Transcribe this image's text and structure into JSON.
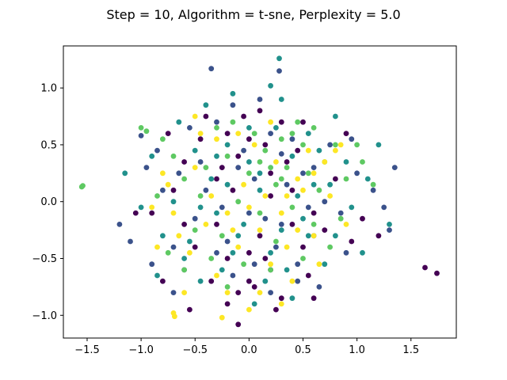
{
  "chart_data": {
    "type": "scatter",
    "title": "Step = 10, Algorithm = t-sne, Perplexity = 5.0",
    "xlabel": "",
    "ylabel": "",
    "xlim": [
      -1.72,
      1.92
    ],
    "ylim": [
      -1.2,
      1.37
    ],
    "xticks": [
      -1.5,
      -1.0,
      -0.5,
      0.0,
      0.5,
      1.0,
      1.5
    ],
    "xtick_labels": [
      "−1.5",
      "−1.0",
      "−0.5",
      "0.0",
      "0.5",
      "1.0",
      "1.5"
    ],
    "yticks": [
      -1.0,
      -0.5,
      0.0,
      0.5,
      1.0
    ],
    "ytick_labels": [
      "−1.0",
      "−0.5",
      "0.0",
      "0.5",
      "1.0"
    ],
    "grid": false,
    "colormap": "viridis",
    "palette": [
      "#440154",
      "#3b528b",
      "#21918c",
      "#5ec962",
      "#fde725"
    ],
    "series": [
      {
        "color": "#440154",
        "points": [
          [
            -0.1,
            0.4
          ],
          [
            0.2,
            -0.6
          ],
          [
            0.0,
            -0.7
          ],
          [
            -0.2,
            0.6
          ],
          [
            0.3,
            0.7
          ],
          [
            -0.3,
            0.2
          ],
          [
            0.1,
            -0.3
          ],
          [
            -0.6,
            -0.2
          ],
          [
            0.5,
            -0.4
          ],
          [
            0.4,
            0.1
          ],
          [
            -0.2,
            -0.5
          ],
          [
            0.05,
            -0.75
          ],
          [
            -0.4,
            0.75
          ],
          [
            0.9,
            0.6
          ],
          [
            0.0,
            0.55
          ],
          [
            -0.1,
            -0.8
          ],
          [
            0.3,
            -0.85
          ],
          [
            -0.25,
            0.3
          ],
          [
            0.2,
            0.25
          ],
          [
            -0.5,
            -0.4
          ],
          [
            0.6,
            -0.1
          ],
          [
            -0.7,
            0.1
          ],
          [
            0.15,
            -0.5
          ],
          [
            -0.05,
            0.75
          ],
          [
            0.45,
            0.45
          ],
          [
            -0.35,
            -0.7
          ],
          [
            0.7,
            -0.25
          ],
          [
            1.05,
            -0.15
          ],
          [
            -0.8,
            -0.7
          ],
          [
            0.25,
            -0.95
          ],
          [
            -0.15,
            0.1
          ],
          [
            0.35,
            0.35
          ],
          [
            0.1,
            0.8
          ],
          [
            -0.6,
            0.35
          ],
          [
            0.8,
            0.2
          ],
          [
            -0.9,
            -0.1
          ],
          [
            0.55,
            -0.65
          ],
          [
            0.0,
            -0.45
          ],
          [
            -0.3,
            -0.2
          ],
          [
            0.2,
            0.05
          ],
          [
            -0.45,
            0.55
          ],
          [
            1.2,
            -0.3
          ],
          [
            -1.05,
            -0.1
          ],
          [
            0.5,
            0.7
          ],
          [
            -0.2,
            -0.9
          ],
          [
            0.4,
            -0.2
          ],
          [
            -0.75,
            0.6
          ],
          [
            0.15,
            0.5
          ],
          [
            1.63,
            -0.58
          ],
          [
            1.74,
            -0.63
          ],
          [
            0.6,
            -0.85
          ],
          [
            -0.1,
            -1.08
          ],
          [
            0.95,
            -0.35
          ],
          [
            -0.55,
            -0.95
          ]
        ]
      },
      {
        "color": "#3b528b",
        "points": [
          [
            -0.4,
            0.1
          ],
          [
            0.3,
            -0.2
          ],
          [
            -0.1,
            0.3
          ],
          [
            0.2,
            0.6
          ],
          [
            -0.7,
            -0.4
          ],
          [
            0.6,
            0.3
          ],
          [
            0.0,
            -0.1
          ],
          [
            -0.3,
            0.7
          ],
          [
            0.45,
            -0.55
          ],
          [
            -0.5,
            -0.15
          ],
          [
            0.1,
            0.9
          ],
          [
            0.28,
            1.15
          ],
          [
            -0.35,
            1.17
          ],
          [
            -0.85,
            0.45
          ],
          [
            0.75,
            0.5
          ],
          [
            -0.2,
            -0.35
          ],
          [
            0.55,
            -0.05
          ],
          [
            -0.65,
            0.25
          ],
          [
            0.05,
            0.2
          ],
          [
            1.35,
            0.3
          ],
          [
            1.3,
            -0.25
          ],
          [
            -1.1,
            -0.35
          ],
          [
            0.9,
            -0.45
          ],
          [
            -0.95,
            0.3
          ],
          [
            -0.15,
            -0.65
          ],
          [
            0.4,
            0.55
          ],
          [
            -0.6,
            -0.6
          ],
          [
            0.65,
            -0.75
          ],
          [
            0.25,
            -0.4
          ],
          [
            -0.45,
            0.35
          ],
          [
            0.15,
            -0.15
          ],
          [
            1.0,
            0.25
          ],
          [
            -0.8,
            0.1
          ],
          [
            0.35,
            0.15
          ],
          [
            -0.25,
            -0.05
          ],
          [
            0.85,
            -0.1
          ],
          [
            -1.0,
            0.58
          ],
          [
            0.7,
            0.0
          ],
          [
            -0.55,
            0.65
          ],
          [
            0.2,
            -0.8
          ],
          [
            -0.05,
            0.45
          ],
          [
            1.15,
            0.1
          ],
          [
            -0.9,
            -0.55
          ],
          [
            0.5,
            0.25
          ],
          [
            -0.3,
            -0.45
          ],
          [
            0.05,
            -0.55
          ],
          [
            0.95,
            0.55
          ],
          [
            -0.7,
            -0.8
          ],
          [
            0.6,
            -0.3
          ],
          [
            -1.2,
            -0.2
          ],
          [
            0.3,
            0.42
          ],
          [
            -0.15,
            0.85
          ],
          [
            1.25,
            -0.05
          ],
          [
            0.45,
            -0.7
          ]
        ]
      },
      {
        "color": "#21918c",
        "points": [
          [
            0.1,
            0.1
          ],
          [
            -0.3,
            -0.1
          ],
          [
            0.4,
            0.4
          ],
          [
            -0.5,
            0.45
          ],
          [
            0.2,
            -0.45
          ],
          [
            -0.1,
            -0.3
          ],
          [
            0.6,
            0.15
          ],
          [
            -0.6,
            -0.5
          ],
          [
            0.3,
            0.9
          ],
          [
            -0.2,
            0.5
          ],
          [
            0.8,
            -0.3
          ],
          [
            0.0,
            0.35
          ],
          [
            -0.8,
            -0.3
          ],
          [
            0.5,
            -0.15
          ],
          [
            -0.35,
            0.2
          ],
          [
            0.9,
            0.35
          ],
          [
            -0.45,
            -0.7
          ],
          [
            0.25,
            0.65
          ],
          [
            -0.05,
            -0.2
          ],
          [
            0.7,
            -0.55
          ],
          [
            1.1,
            0.2
          ],
          [
            -0.9,
            0.4
          ],
          [
            0.35,
            -0.6
          ],
          [
            -0.15,
            0.95
          ],
          [
            0.55,
            0.6
          ],
          [
            -0.7,
            0.0
          ],
          [
            0.15,
            -0.7
          ],
          [
            1.05,
            -0.45
          ],
          [
            -0.4,
            0.85
          ],
          [
            0.45,
            0.05
          ],
          [
            -0.25,
            -0.6
          ],
          [
            0.8,
            0.75
          ],
          [
            -1.0,
            -0.05
          ],
          [
            0.3,
            -0.25
          ],
          [
            0.0,
            0.65
          ],
          [
            1.2,
            0.5
          ],
          [
            -0.55,
            -0.35
          ],
          [
            0.65,
            0.45
          ],
          [
            -0.85,
            -0.65
          ],
          [
            0.2,
            1.02
          ],
          [
            0.28,
            1.26
          ],
          [
            -0.3,
            0.4
          ],
          [
            0.95,
            -0.05
          ],
          [
            -0.65,
            0.7
          ],
          [
            0.4,
            -0.85
          ],
          [
            0.1,
            0.25
          ],
          [
            -0.15,
            -0.45
          ],
          [
            1.3,
            -0.2
          ],
          [
            -1.15,
            0.25
          ],
          [
            0.75,
            0.15
          ],
          [
            -0.45,
            -0.05
          ],
          [
            0.55,
            -0.3
          ],
          [
            -0.2,
            0.15
          ],
          [
            0.05,
            -0.9
          ]
        ]
      },
      {
        "color": "#5ec962",
        "points": [
          [
            0.2,
            0.3
          ],
          [
            -0.4,
            0.3
          ],
          [
            0.5,
            0.5
          ],
          [
            -0.6,
            0.2
          ],
          [
            0.1,
            -0.1
          ],
          [
            0.3,
            0.2
          ],
          [
            -0.2,
            0.4
          ],
          [
            0.7,
            0.35
          ],
          [
            -0.8,
            0.55
          ],
          [
            0.0,
            0.25
          ],
          [
            0.4,
            -0.05
          ],
          [
            -0.3,
            0.65
          ],
          [
            0.6,
            -0.2
          ],
          [
            0.9,
            0.2
          ],
          [
            -0.5,
            -0.25
          ],
          [
            0.15,
            0.45
          ],
          [
            -0.1,
            0.0
          ],
          [
            0.25,
            -0.35
          ],
          [
            0.8,
            0.5
          ],
          [
            -0.7,
            0.4
          ],
          [
            1.0,
            0.5
          ],
          [
            -1.0,
            0.65
          ],
          [
            -0.95,
            0.62
          ],
          [
            0.45,
            0.7
          ],
          [
            -0.25,
            -0.3
          ],
          [
            0.35,
            0.3
          ],
          [
            0.05,
            0.6
          ],
          [
            -0.45,
            0.05
          ],
          [
            0.65,
            0.1
          ],
          [
            1.15,
            0.15
          ],
          [
            -0.85,
            0.05
          ],
          [
            0.2,
            -0.6
          ],
          [
            0.55,
            0.25
          ],
          [
            -0.15,
            0.7
          ],
          [
            -1.54,
            0.14
          ],
          [
            -1.55,
            0.13
          ],
          [
            0.85,
            -0.15
          ],
          [
            -0.6,
            -0.6
          ],
          [
            0.3,
            0.55
          ],
          [
            -0.35,
            -0.5
          ],
          [
            0.75,
            -0.4
          ],
          [
            0.1,
            0.35
          ],
          [
            -0.05,
            -0.55
          ],
          [
            0.5,
            -0.5
          ],
          [
            -0.2,
            -0.75
          ],
          [
            0.4,
            0.6
          ],
          [
            1.05,
            0.35
          ],
          [
            -0.75,
            -0.45
          ],
          [
            0.25,
            0.15
          ],
          [
            0.6,
            0.65
          ]
        ]
      },
      {
        "color": "#fde725",
        "points": [
          [
            -0.2,
            -0.1
          ],
          [
            0.3,
            -0.1
          ],
          [
            -0.5,
            0.3
          ],
          [
            0.6,
            -0.3
          ],
          [
            0.0,
            -0.05
          ],
          [
            -0.7,
            -0.1
          ],
          [
            0.45,
            0.2
          ],
          [
            -0.3,
            0.55
          ],
          [
            0.2,
            -0.55
          ],
          [
            -0.55,
            -0.45
          ],
          [
            0.75,
            0.05
          ],
          [
            -0.1,
            0.6
          ],
          [
            0.35,
            -0.4
          ],
          [
            -0.8,
            0.25
          ],
          [
            0.9,
            -0.2
          ],
          [
            -0.4,
            -0.2
          ],
          [
            0.1,
            -0.25
          ],
          [
            0.55,
            0.45
          ],
          [
            -0.65,
            -0.3
          ],
          [
            0.25,
            0.35
          ],
          [
            -0.05,
            0.15
          ],
          [
            0.8,
            0.45
          ],
          [
            -0.9,
            -0.05
          ],
          [
            0.4,
            -0.7
          ],
          [
            -0.2,
            -0.8
          ],
          [
            0.05,
            0.5
          ],
          [
            -0.45,
            0.6
          ],
          [
            0.65,
            -0.55
          ],
          [
            -0.85,
            -0.4
          ],
          [
            0.15,
            0.05
          ],
          [
            -0.3,
            -0.65
          ],
          [
            0.5,
            0.1
          ],
          [
            -0.6,
            -0.8
          ],
          [
            0.3,
            -0.9
          ],
          [
            -0.7,
            -0.98
          ],
          [
            -0.69,
            -1.01
          ],
          [
            0.1,
            -0.8
          ],
          [
            -0.15,
            -0.25
          ],
          [
            0.7,
            0.35
          ],
          [
            -0.35,
            0.05
          ],
          [
            0.85,
            0.5
          ],
          [
            -0.5,
            0.75
          ],
          [
            0.2,
            0.7
          ],
          [
            -0.25,
            -1.02
          ],
          [
            0.0,
            -0.95
          ],
          [
            0.45,
            -0.25
          ],
          [
            -0.75,
            0.15
          ],
          [
            0.6,
            0.25
          ],
          [
            -0.1,
            -0.4
          ],
          [
            0.35,
            0.05
          ]
        ]
      }
    ]
  }
}
